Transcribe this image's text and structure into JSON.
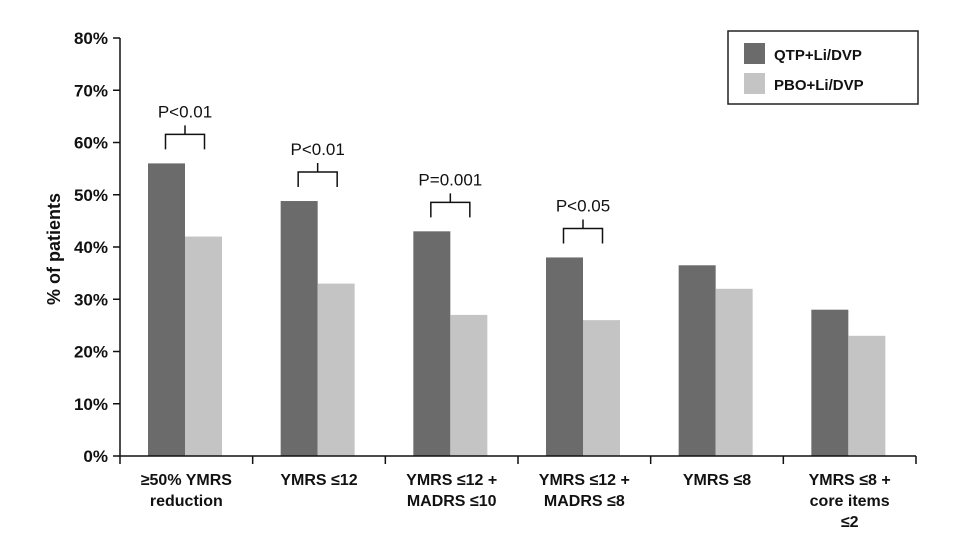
{
  "chart_data": {
    "type": "bar",
    "ylabel": "% of patients",
    "ylim": [
      0,
      80
    ],
    "yticks": [
      "0%",
      "10%",
      "20%",
      "30%",
      "40%",
      "50%",
      "60%",
      "70%",
      "80%"
    ],
    "categories": [
      [
        "≥50% YMRS",
        "reduction"
      ],
      [
        "YMRS ≤12"
      ],
      [
        "YMRS ≤12 +",
        "MADRS ≤10"
      ],
      [
        "YMRS ≤12 +",
        "MADRS ≤8"
      ],
      [
        "YMRS ≤8"
      ],
      [
        "YMRS ≤8 +",
        "core items",
        "≤2"
      ]
    ],
    "series": [
      {
        "name": "QTP+Li/DVP",
        "color": "#6b6b6b",
        "values": [
          56,
          48.8,
          43,
          38,
          36.5,
          28
        ]
      },
      {
        "name": "PBO+Li/DVP",
        "color": "#c4c4c4",
        "values": [
          42,
          33,
          27,
          26,
          32,
          23
        ]
      }
    ],
    "annotations": [
      "P<0.01",
      "P<0.01",
      "P=0.001",
      "P<0.05",
      "",
      ""
    ],
    "legend_position": "top-right",
    "grid": false
  }
}
